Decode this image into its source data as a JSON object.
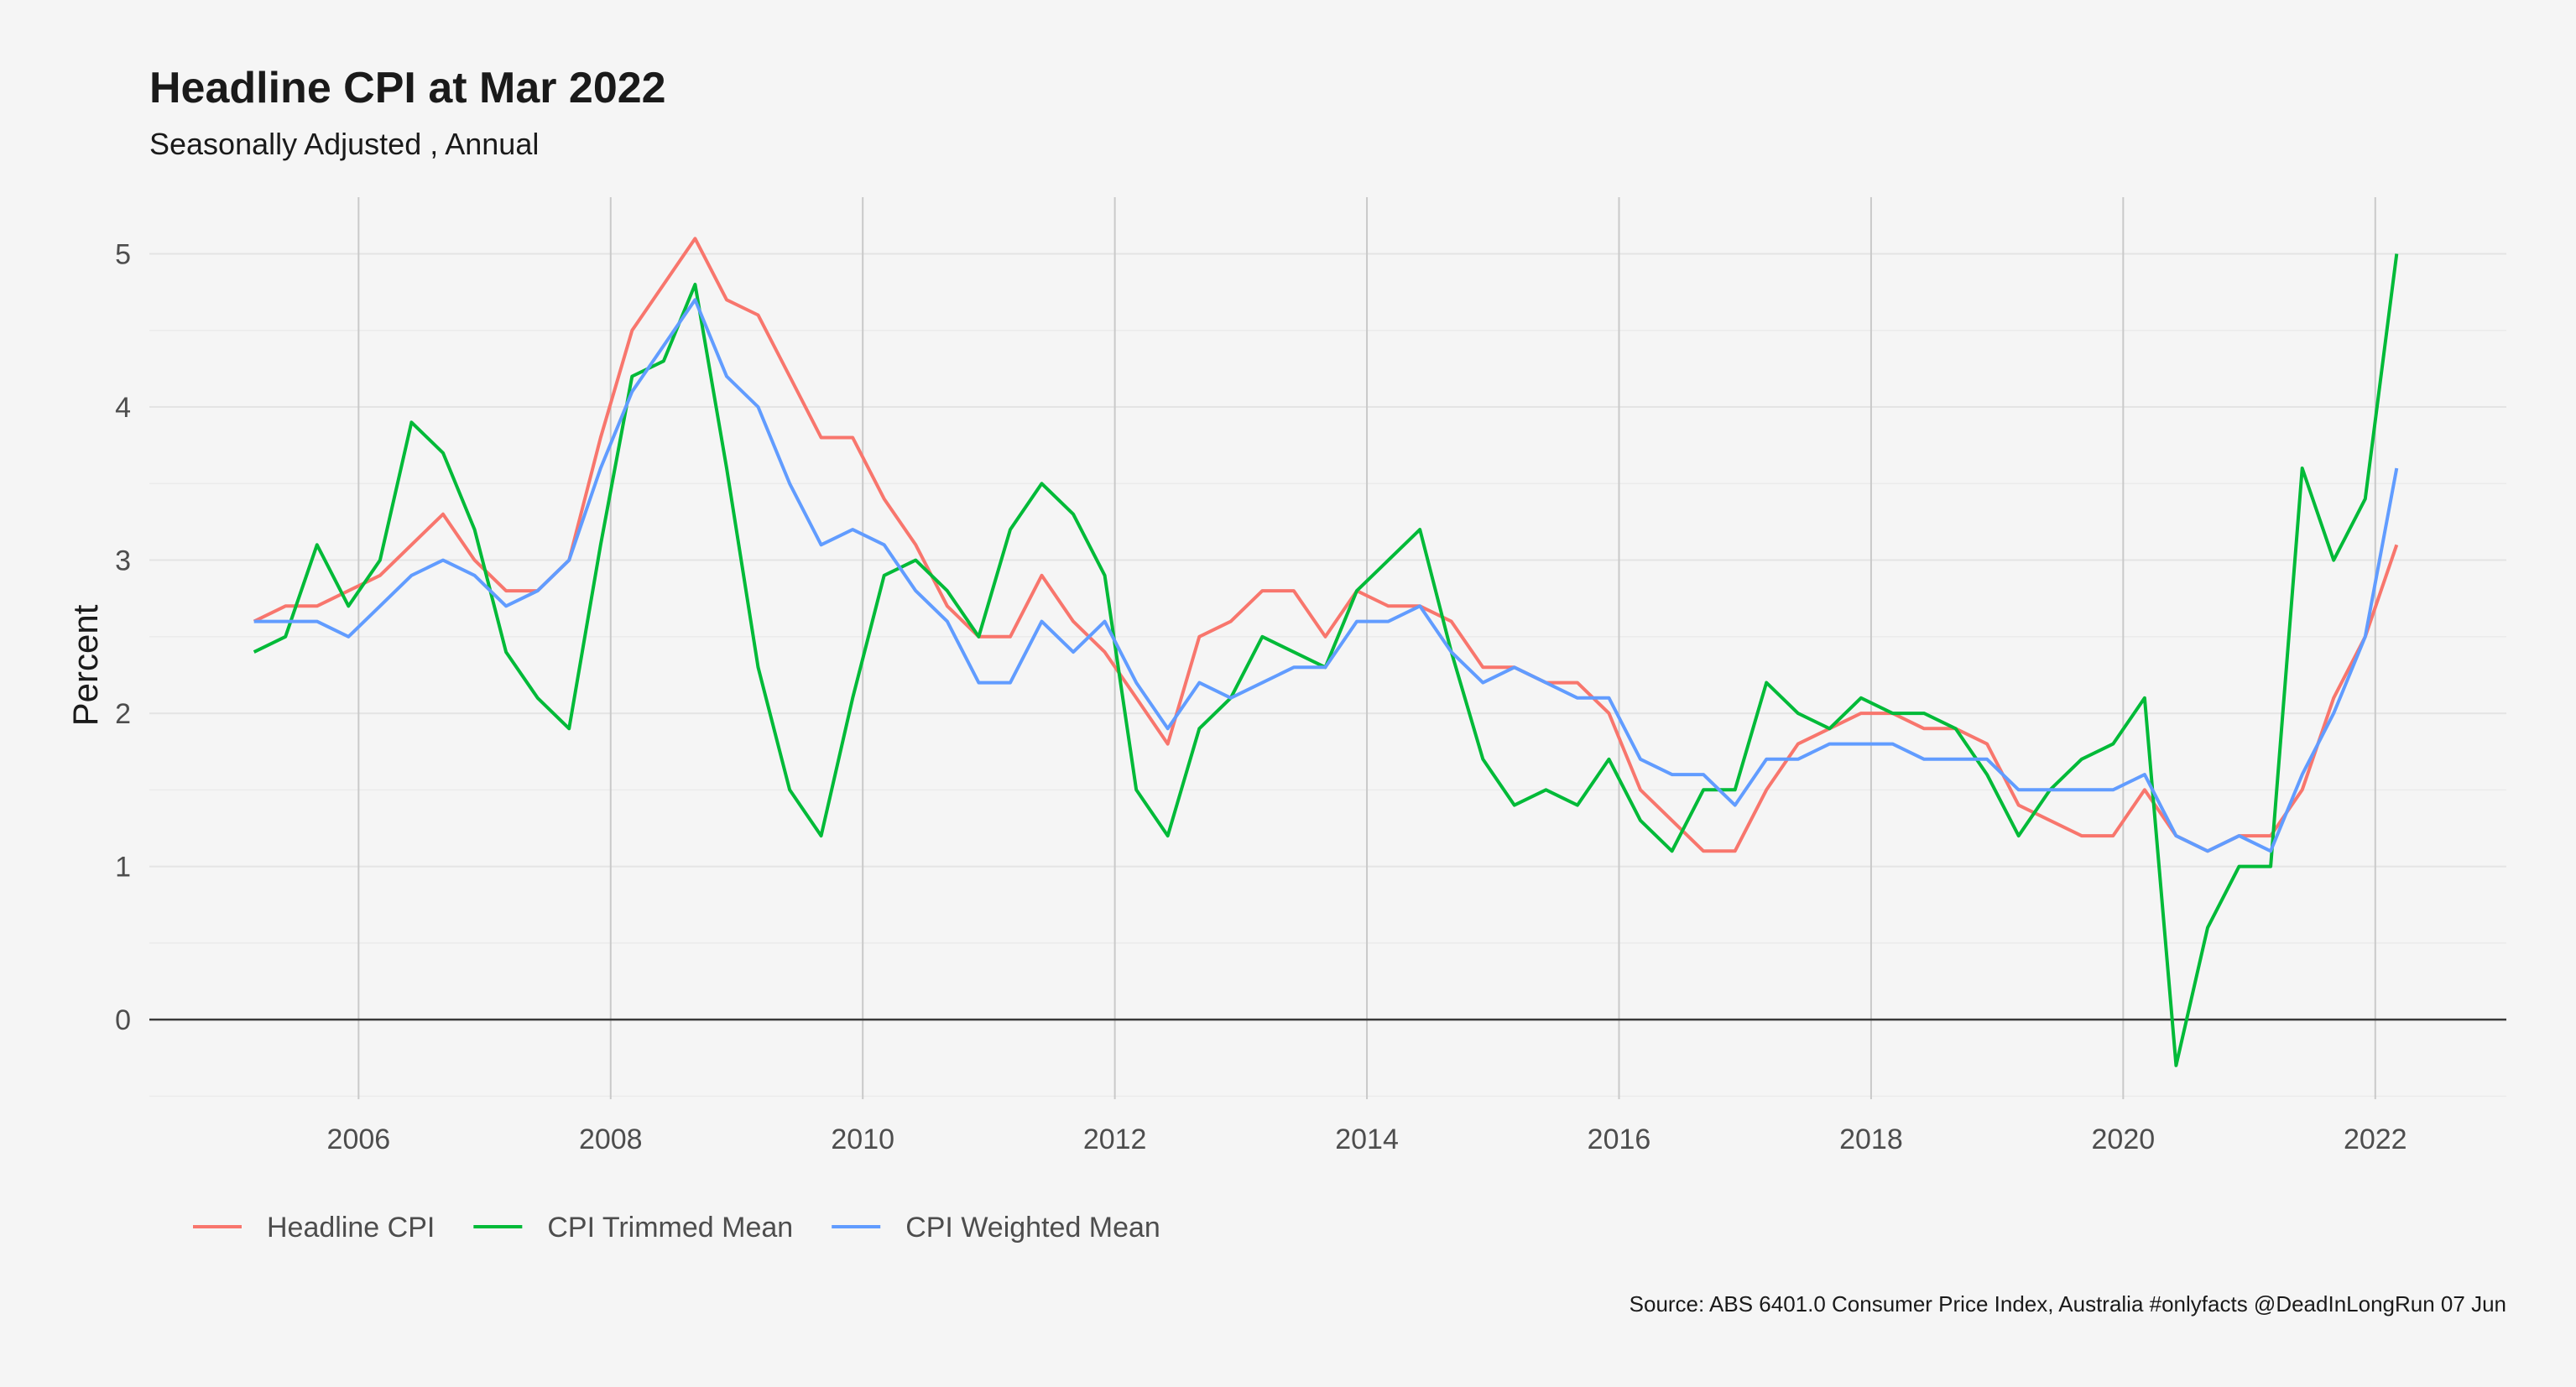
{
  "chart_data": {
    "type": "line",
    "title": "Headline CPI at Mar 2022",
    "subtitle": "Seasonally Adjusted , Annual",
    "xlabel": "",
    "ylabel": "Percent",
    "caption": "Source: ABS 6401.0 Consumer Price Index, Australia #onlyfacts @DeadInLongRun 07 Jun",
    "xlim": [
      2004.34,
      2023.04
    ],
    "ylim": [
      -0.52,
      5.37
    ],
    "x_ticks": [
      2006,
      2008,
      2010,
      2012,
      2014,
      2016,
      2018,
      2020,
      2022
    ],
    "x_tick_labels": [
      "2006",
      "2008",
      "2010",
      "2012",
      "2014",
      "2016",
      "2018",
      "2020",
      "2022"
    ],
    "y_ticks": [
      0,
      1,
      2,
      3,
      4,
      5
    ],
    "y_tick_labels": [
      "0",
      "1",
      "2",
      "3",
      "4",
      "5"
    ],
    "x_gridlines": "vertical major lines at even years",
    "y_gridlines": "horizontal major and minor lines",
    "zero_line": true,
    "legend_position": "bottom-left",
    "x": [
      2005.17,
      2005.42,
      2005.67,
      2005.92,
      2006.17,
      2006.42,
      2006.67,
      2006.92,
      2007.17,
      2007.42,
      2007.67,
      2007.92,
      2008.17,
      2008.42,
      2008.67,
      2008.92,
      2009.17,
      2009.42,
      2009.67,
      2009.92,
      2010.17,
      2010.42,
      2010.67,
      2010.92,
      2011.17,
      2011.42,
      2011.67,
      2011.92,
      2012.17,
      2012.42,
      2012.67,
      2012.92,
      2013.17,
      2013.42,
      2013.67,
      2013.92,
      2014.17,
      2014.42,
      2014.67,
      2014.92,
      2015.17,
      2015.42,
      2015.67,
      2015.92,
      2016.17,
      2016.42,
      2016.67,
      2016.92,
      2017.17,
      2017.42,
      2017.67,
      2017.92,
      2018.17,
      2018.42,
      2018.67,
      2018.92,
      2019.17,
      2019.42,
      2019.67,
      2019.92,
      2020.17,
      2020.42,
      2020.67,
      2020.92,
      2021.17,
      2021.42,
      2021.67,
      2021.92,
      2022.17
    ],
    "series": [
      {
        "name": "Headline CPI",
        "color": "#F8766D",
        "values": [
          2.6,
          2.7,
          2.7,
          2.8,
          2.9,
          3.1,
          3.3,
          3.0,
          2.8,
          2.8,
          3.0,
          3.8,
          4.5,
          4.8,
          5.1,
          4.7,
          4.6,
          4.2,
          3.8,
          3.8,
          3.4,
          3.1,
          2.7,
          2.5,
          2.5,
          2.9,
          2.6,
          2.4,
          2.1,
          1.8,
          2.5,
          2.6,
          2.8,
          2.8,
          2.5,
          2.8,
          2.7,
          2.7,
          2.6,
          2.3,
          2.3,
          2.2,
          2.2,
          2.0,
          1.5,
          1.3,
          1.1,
          1.1,
          1.5,
          1.8,
          1.9,
          2.0,
          2.0,
          1.9,
          1.9,
          1.8,
          1.4,
          1.3,
          1.2,
          1.2,
          1.5,
          1.2,
          1.1,
          1.2,
          1.2,
          1.5,
          2.1,
          2.5,
          3.1
        ]
      },
      {
        "name": "CPI Trimmed Mean",
        "color": "#00BA38",
        "values": [
          2.4,
          2.5,
          3.1,
          2.7,
          3.0,
          3.9,
          3.7,
          3.2,
          2.4,
          2.1,
          1.9,
          3.1,
          4.2,
          4.3,
          4.8,
          3.6,
          2.3,
          1.5,
          1.2,
          2.1,
          2.9,
          3.0,
          2.8,
          2.5,
          3.2,
          3.5,
          3.3,
          2.9,
          1.5,
          1.2,
          1.9,
          2.1,
          2.5,
          2.4,
          2.3,
          2.8,
          3.0,
          3.2,
          2.4,
          1.7,
          1.4,
          1.5,
          1.4,
          1.7,
          1.3,
          1.1,
          1.5,
          1.5,
          2.2,
          2.0,
          1.9,
          2.1,
          2.0,
          2.0,
          1.9,
          1.6,
          1.2,
          1.5,
          1.7,
          1.8,
          2.1,
          -0.3,
          0.6,
          1.0,
          1.0,
          3.6,
          3.0,
          3.4,
          5.0
        ]
      },
      {
        "name": "CPI Weighted Mean",
        "color": "#619CFF",
        "values": [
          2.6,
          2.6,
          2.6,
          2.5,
          2.7,
          2.9,
          3.0,
          2.9,
          2.7,
          2.8,
          3.0,
          3.6,
          4.1,
          4.4,
          4.7,
          4.2,
          4.0,
          3.5,
          3.1,
          3.2,
          3.1,
          2.8,
          2.6,
          2.2,
          2.2,
          2.6,
          2.4,
          2.6,
          2.2,
          1.9,
          2.2,
          2.1,
          2.2,
          2.3,
          2.3,
          2.6,
          2.6,
          2.7,
          2.4,
          2.2,
          2.3,
          2.2,
          2.1,
          2.1,
          1.7,
          1.6,
          1.6,
          1.4,
          1.7,
          1.7,
          1.8,
          1.8,
          1.8,
          1.7,
          1.7,
          1.7,
          1.5,
          1.5,
          1.5,
          1.5,
          1.6,
          1.2,
          1.1,
          1.2,
          1.1,
          1.6,
          2.0,
          2.5,
          3.6
        ]
      }
    ]
  }
}
